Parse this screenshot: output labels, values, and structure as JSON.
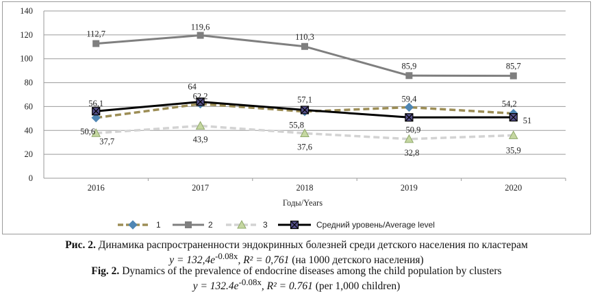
{
  "chart_data": {
    "type": "line",
    "categories": [
      "2016",
      "2017",
      "2018",
      "2019",
      "2020"
    ],
    "xlabel": "Годы/Years",
    "ylabel": "",
    "ylim": [
      0,
      140
    ],
    "yticks": [
      "0",
      "20",
      "40",
      "60",
      "80",
      "100",
      "120",
      "140"
    ],
    "grid": true,
    "legend_position": "bottom",
    "series": [
      {
        "name": "1",
        "values": [
          50.6,
          62.2,
          55.8,
          59.4,
          54.2
        ],
        "labels": [
          "50,6",
          "62,2",
          "55,8",
          "59,4",
          "54,2"
        ],
        "color": "#9c8d55",
        "style": "dashed",
        "marker": "diamond",
        "marker_color": "#4f86b4"
      },
      {
        "name": "2",
        "values": [
          112.7,
          119.6,
          110.3,
          85.9,
          85.7
        ],
        "labels": [
          "112,7",
          "119,6",
          "110,3",
          "85,9",
          "85,7"
        ],
        "color": "#7f7f7f",
        "style": "solid",
        "marker": "square",
        "marker_color": "#7f7f7f"
      },
      {
        "name": "3",
        "values": [
          37.7,
          43.9,
          37.6,
          32.8,
          35.9
        ],
        "labels": [
          "37,7",
          "43,9",
          "37,6",
          "32,8",
          "35,9"
        ],
        "color": "#d3d3d3",
        "style": "dashed",
        "marker": "triangle",
        "marker_color": "#c5d7a1"
      },
      {
        "name": "Средний уровень/Average level",
        "values": [
          56.1,
          64,
          57.1,
          50.9,
          51
        ],
        "labels": [
          "56,1",
          "64",
          "57,1",
          "50,9",
          "51"
        ],
        "color": "#000000",
        "style": "solid",
        "marker": "xsquare",
        "marker_color": "#55508a"
      }
    ]
  },
  "caption": {
    "ru_prefix": "Рис. 2.",
    "ru_text": " Динамика распространенности эндокринных болезней среди детского населения по кластерам",
    "ru_formula_a": "y = 132,4e",
    "ru_formula_exp": "-0.08x",
    "ru_formula_b": ", R² = 0,761",
    "ru_formula_note": " (на 1000 детского населения)",
    "en_prefix": "Fig. 2.",
    "en_text": " Dynamics of the prevalence of endocrine diseases among the child population by clusters",
    "en_formula_a": "y = 132.4e",
    "en_formula_exp": "-0.08x",
    "en_formula_b": ", R² = 0.761",
    "en_formula_note": " (per 1,000 children)"
  }
}
